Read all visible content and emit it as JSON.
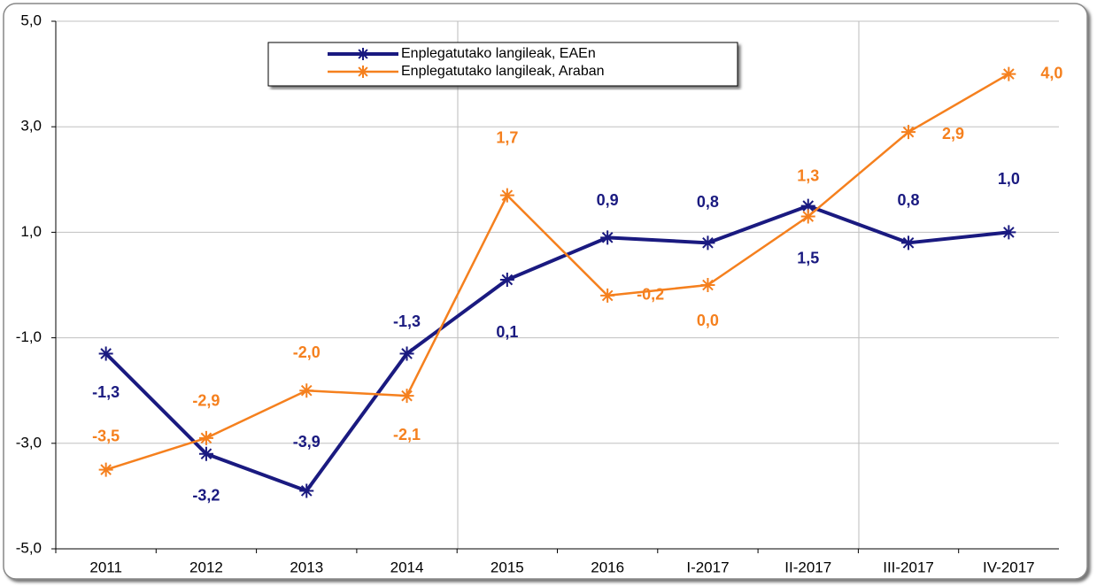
{
  "chart_data": {
    "type": "line",
    "categories": [
      "2011",
      "2012",
      "2013",
      "2014",
      "2015",
      "2016",
      "I-2017",
      "II-2017",
      "III-2017",
      "IV-2017"
    ],
    "series": [
      {
        "name": "Enplegatutako langileak, EAEn",
        "color": "#1a1a80",
        "values": [
          -1.3,
          -3.2,
          -3.9,
          -1.3,
          0.1,
          0.9,
          0.8,
          1.5,
          0.8,
          1.0
        ],
        "value_labels": [
          "-1,3",
          "-3,2",
          "-3,9",
          "-1,3",
          "0,1",
          "0,9",
          "0,8",
          "1,5",
          "0,8",
          "1,0"
        ]
      },
      {
        "name": "Enplegatutako langileak, Araban",
        "color": "#f5801e",
        "values": [
          -3.5,
          -2.9,
          -2.0,
          -2.1,
          1.7,
          -0.2,
          0.0,
          1.3,
          2.9,
          4.0
        ],
        "value_labels": [
          "-3,5",
          "-2,9",
          "-2,0",
          "-2,1",
          "1,7",
          "-0,2",
          "0,0",
          "1,3",
          "2,9",
          "4,0"
        ]
      }
    ],
    "ylim": [
      -5,
      5
    ],
    "yticks": [
      {
        "value": -5,
        "label": "-5,0"
      },
      {
        "value": -3,
        "label": "-3,0"
      },
      {
        "value": -1,
        "label": "-1,0"
      },
      {
        "value": 1,
        "label": "1,0"
      },
      {
        "value": 3,
        "label": "3,0"
      },
      {
        "value": 5,
        "label": "5,0"
      }
    ],
    "grid": true
  }
}
